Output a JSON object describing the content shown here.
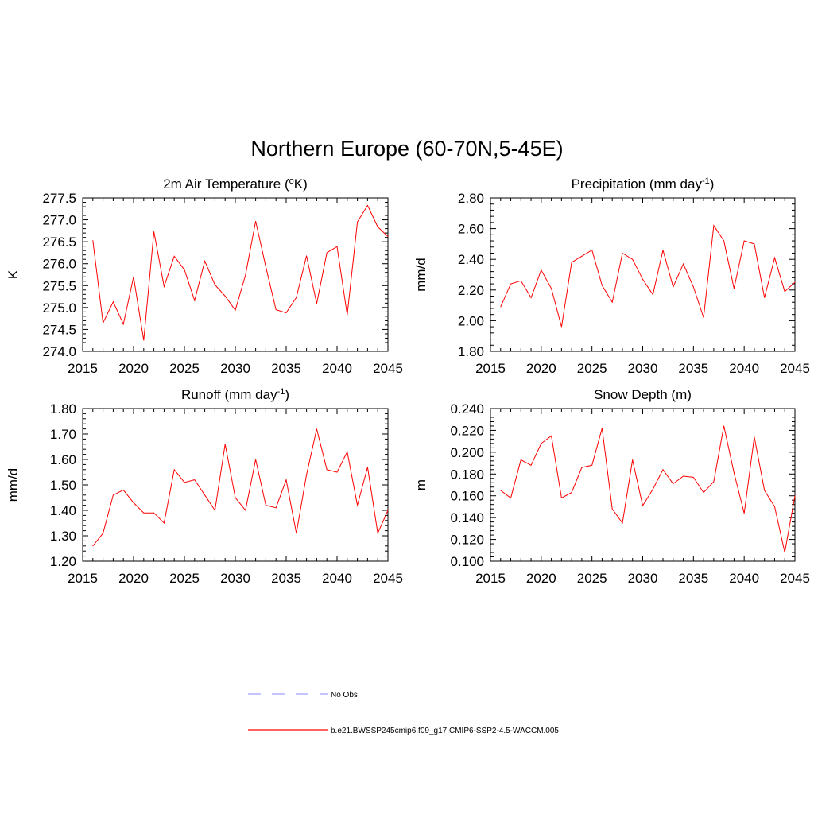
{
  "figure": {
    "title": "Northern Europe (60-70N,5-45E)"
  },
  "colors": {
    "model_line": "#ff0000",
    "obs_line": "#a0a0ff",
    "axis": "#000000"
  },
  "legend": {
    "items": [
      {
        "label": "No Obs",
        "style": "dashed",
        "color": "#a0a0ff"
      },
      {
        "label": "b.e21.BWSSP245cmip6.f09_g17.CMIP6-SSP2-4.5-WACCM.005",
        "style": "solid",
        "color": "#ff0000"
      }
    ]
  },
  "chart_data": [
    {
      "id": "temp",
      "type": "line",
      "title": "2m Air Temperature (",
      "title_sup": "o",
      "title_after": "K)",
      "ylabel": "K",
      "xlim": [
        2015,
        2045
      ],
      "ylim": [
        274.0,
        277.5
      ],
      "xticks": [
        "2015",
        "2020",
        "2025",
        "2030",
        "2035",
        "2040",
        "2045"
      ],
      "yticks": [
        "274.0",
        "274.5",
        "275.0",
        "275.5",
        "276.0",
        "276.5",
        "277.0",
        "277.5"
      ],
      "series": [
        {
          "name": "b.e21.BWSSP245cmip6.f09_g17.CMIP6-SSP2-4.5-WACCM.005",
          "x": [
            2016,
            2017,
            2018,
            2019,
            2020,
            2021,
            2022,
            2023,
            2024,
            2025,
            2026,
            2027,
            2028,
            2029,
            2030,
            2031,
            2032,
            2033,
            2034,
            2035,
            2036,
            2037,
            2038,
            2039,
            2040,
            2041,
            2042,
            2043,
            2044,
            2045
          ],
          "values": [
            276.53,
            274.65,
            275.13,
            274.62,
            275.7,
            274.25,
            276.73,
            275.48,
            276.17,
            275.86,
            275.16,
            276.06,
            275.52,
            275.26,
            274.94,
            275.74,
            276.97,
            275.93,
            274.95,
            274.88,
            275.23,
            276.18,
            275.09,
            276.25,
            276.39,
            274.83,
            276.95,
            277.33,
            276.84,
            276.62
          ]
        }
      ]
    },
    {
      "id": "precip",
      "type": "line",
      "title": "Precipitation (mm day",
      "title_sup": "-1",
      "title_after": ")",
      "ylabel": "mm/d",
      "xlim": [
        2015,
        2045
      ],
      "ylim": [
        1.8,
        2.8
      ],
      "xticks": [
        "2015",
        "2020",
        "2025",
        "2030",
        "2035",
        "2040",
        "2045"
      ],
      "yticks": [
        "1.80",
        "2.00",
        "2.20",
        "2.40",
        "2.60",
        "2.80"
      ],
      "series": [
        {
          "name": "b.e21.BWSSP245cmip6.f09_g17.CMIP6-SSP2-4.5-WACCM.005",
          "x": [
            2016,
            2017,
            2018,
            2019,
            2020,
            2021,
            2022,
            2023,
            2024,
            2025,
            2026,
            2027,
            2028,
            2029,
            2030,
            2031,
            2032,
            2033,
            2034,
            2035,
            2036,
            2037,
            2038,
            2039,
            2040,
            2041,
            2042,
            2043,
            2044,
            2045
          ],
          "values": [
            2.09,
            2.24,
            2.26,
            2.15,
            2.33,
            2.21,
            1.96,
            2.38,
            2.42,
            2.46,
            2.23,
            2.12,
            2.44,
            2.4,
            2.27,
            2.17,
            2.46,
            2.22,
            2.37,
            2.22,
            2.02,
            2.62,
            2.52,
            2.21,
            2.52,
            2.5,
            2.15,
            2.41,
            2.19,
            2.25
          ]
        }
      ]
    },
    {
      "id": "runoff",
      "type": "line",
      "title": "Runoff (mm day",
      "title_sup": "-1",
      "title_after": ")",
      "ylabel": "mm/d",
      "xlim": [
        2015,
        2045
      ],
      "ylim": [
        1.2,
        1.8
      ],
      "xticks": [
        "2015",
        "2020",
        "2025",
        "2030",
        "2035",
        "2040",
        "2045"
      ],
      "yticks": [
        "1.20",
        "1.30",
        "1.40",
        "1.50",
        "1.60",
        "1.70",
        "1.80"
      ],
      "series": [
        {
          "name": "b.e21.BWSSP245cmip6.f09_g17.CMIP6-SSP2-4.5-WACCM.005",
          "x": [
            2016,
            2017,
            2018,
            2019,
            2020,
            2021,
            2022,
            2023,
            2024,
            2025,
            2026,
            2027,
            2028,
            2029,
            2030,
            2031,
            2032,
            2033,
            2034,
            2035,
            2036,
            2037,
            2038,
            2039,
            2040,
            2041,
            2042,
            2043,
            2044,
            2045
          ],
          "values": [
            1.26,
            1.31,
            1.46,
            1.48,
            1.43,
            1.39,
            1.39,
            1.35,
            1.56,
            1.51,
            1.52,
            1.46,
            1.4,
            1.66,
            1.45,
            1.4,
            1.6,
            1.42,
            1.41,
            1.52,
            1.31,
            1.54,
            1.72,
            1.56,
            1.55,
            1.63,
            1.42,
            1.57,
            1.31,
            1.4
          ]
        }
      ]
    },
    {
      "id": "snow",
      "type": "line",
      "title": "Snow Depth (m)",
      "title_sup": "",
      "title_after": "",
      "ylabel": "m",
      "xlim": [
        2015,
        2045
      ],
      "ylim": [
        0.1,
        0.24
      ],
      "xticks": [
        "2015",
        "2020",
        "2025",
        "2030",
        "2035",
        "2040",
        "2045"
      ],
      "yticks": [
        "0.100",
        "0.120",
        "0.140",
        "0.160",
        "0.180",
        "0.200",
        "0.220",
        "0.240"
      ],
      "series": [
        {
          "name": "b.e21.BWSSP245cmip6.f09_g17.CMIP6-SSP2-4.5-WACCM.005",
          "x": [
            2016,
            2017,
            2018,
            2019,
            2020,
            2021,
            2022,
            2023,
            2024,
            2025,
            2026,
            2027,
            2028,
            2029,
            2030,
            2031,
            2032,
            2033,
            2034,
            2035,
            2036,
            2037,
            2038,
            2039,
            2040,
            2041,
            2042,
            2043,
            2044,
            2045
          ],
          "values": [
            0.165,
            0.158,
            0.193,
            0.188,
            0.208,
            0.215,
            0.158,
            0.163,
            0.186,
            0.188,
            0.222,
            0.148,
            0.135,
            0.193,
            0.151,
            0.166,
            0.184,
            0.171,
            0.178,
            0.177,
            0.163,
            0.173,
            0.224,
            0.181,
            0.144,
            0.214,
            0.165,
            0.15,
            0.108,
            0.16
          ]
        }
      ]
    }
  ]
}
